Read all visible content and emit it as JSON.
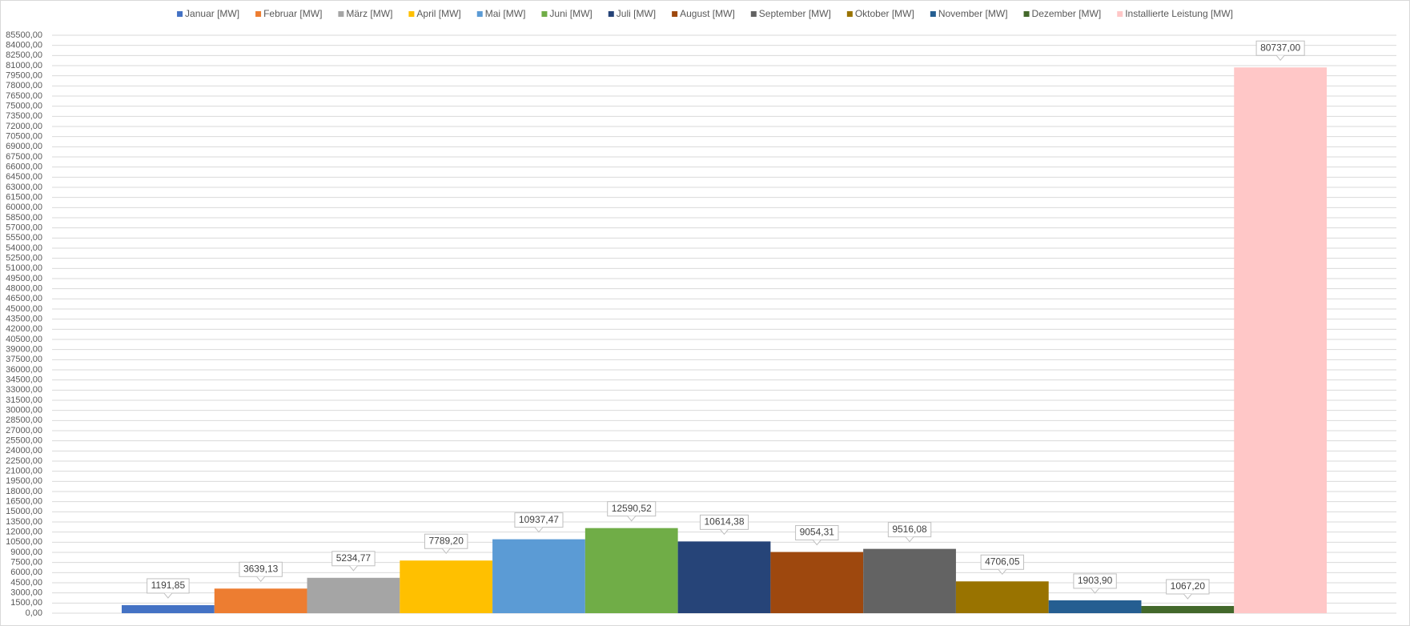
{
  "chart_data": {
    "type": "bar",
    "categories": [
      null
    ],
    "series": [
      {
        "name": "Januar [MW]",
        "color": "#4472c4",
        "values": [
          1191.85
        ],
        "value_labels": [
          "1191,85"
        ]
      },
      {
        "name": "Februar [MW]",
        "color": "#ed7d31",
        "values": [
          3639.13
        ],
        "value_labels": [
          "3639,13"
        ]
      },
      {
        "name": "März [MW]",
        "color": "#a5a5a5",
        "values": [
          5234.77
        ],
        "value_labels": [
          "5234,77"
        ]
      },
      {
        "name": "April [MW]",
        "color": "#ffc000",
        "values": [
          7789.2
        ],
        "value_labels": [
          "7789,20"
        ]
      },
      {
        "name": "Mai [MW]",
        "color": "#5b9bd5",
        "values": [
          10937.47
        ],
        "value_labels": [
          "10937,47"
        ]
      },
      {
        "name": "Juni [MW]",
        "color": "#70ad47",
        "values": [
          12590.52
        ],
        "value_labels": [
          "12590,52"
        ]
      },
      {
        "name": "Juli [MW]",
        "color": "#264478",
        "values": [
          10614.38
        ],
        "value_labels": [
          "10614,38"
        ]
      },
      {
        "name": "August [MW]",
        "color": "#9e480e",
        "values": [
          9054.31
        ],
        "value_labels": [
          "9054,31"
        ]
      },
      {
        "name": "September [MW]",
        "color": "#636363",
        "values": [
          9516.08
        ],
        "value_labels": [
          "9516,08"
        ]
      },
      {
        "name": "Oktober [MW]",
        "color": "#997300",
        "values": [
          4706.05
        ],
        "value_labels": [
          "4706,05"
        ]
      },
      {
        "name": "November [MW]",
        "color": "#255e91",
        "values": [
          1903.9
        ],
        "value_labels": [
          "1903,90"
        ]
      },
      {
        "name": "Dezember [MW]",
        "color": "#43682b",
        "values": [
          1067.2
        ],
        "value_labels": [
          "1067,20"
        ]
      },
      {
        "name": "Installierte Leistung [MW]",
        "color": "#ffc7c7",
        "values": [
          80737.0
        ],
        "value_labels": [
          "80737,00"
        ]
      }
    ],
    "ylim": [
      0,
      85500
    ],
    "yticks": [
      {
        "value": 0,
        "label": "0,00"
      },
      {
        "value": 1500,
        "label": "1500,00"
      },
      {
        "value": 3000,
        "label": "3000,00"
      },
      {
        "value": 4500,
        "label": "4500,00"
      },
      {
        "value": 6000,
        "label": "6000,00"
      },
      {
        "value": 7500,
        "label": "7500,00"
      },
      {
        "value": 9000,
        "label": "9000,00"
      },
      {
        "value": 10500,
        "label": "10500,00"
      },
      {
        "value": 12000,
        "label": "12000,00"
      },
      {
        "value": 13500,
        "label": "13500,00"
      },
      {
        "value": 15000,
        "label": "15000,00"
      },
      {
        "value": 16500,
        "label": "16500,00"
      },
      {
        "value": 18000,
        "label": "18000,00"
      },
      {
        "value": 19500,
        "label": "19500,00"
      },
      {
        "value": 21000,
        "label": "21000,00"
      },
      {
        "value": 22500,
        "label": "22500,00"
      },
      {
        "value": 24000,
        "label": "24000,00"
      },
      {
        "value": 25500,
        "label": "25500,00"
      },
      {
        "value": 27000,
        "label": "27000,00"
      },
      {
        "value": 28500,
        "label": "28500,00"
      },
      {
        "value": 30000,
        "label": "30000,00"
      },
      {
        "value": 31500,
        "label": "31500,00"
      },
      {
        "value": 33000,
        "label": "33000,00"
      },
      {
        "value": 34500,
        "label": "34500,00"
      },
      {
        "value": 36000,
        "label": "36000,00"
      },
      {
        "value": 37500,
        "label": "37500,00"
      },
      {
        "value": 39000,
        "label": "39000,00"
      },
      {
        "value": 40500,
        "label": "40500,00"
      },
      {
        "value": 42000,
        "label": "42000,00"
      },
      {
        "value": 43500,
        "label": "43500,00"
      },
      {
        "value": 45000,
        "label": "45000,00"
      },
      {
        "value": 46500,
        "label": "46500,00"
      },
      {
        "value": 48000,
        "label": "48000,00"
      },
      {
        "value": 49500,
        "label": "49500,00"
      },
      {
        "value": 51000,
        "label": "51000,00"
      },
      {
        "value": 52500,
        "label": "52500,00"
      },
      {
        "value": 54000,
        "label": "54000,00"
      },
      {
        "value": 55500,
        "label": "55500,00"
      },
      {
        "value": 57000,
        "label": "57000,00"
      },
      {
        "value": 58500,
        "label": "58500,00"
      },
      {
        "value": 60000,
        "label": "60000,00"
      },
      {
        "value": 61500,
        "label": "61500,00"
      },
      {
        "value": 63000,
        "label": "63000,00"
      },
      {
        "value": 64500,
        "label": "64500,00"
      },
      {
        "value": 66000,
        "label": "66000,00"
      },
      {
        "value": 67500,
        "label": "67500,00"
      },
      {
        "value": 69000,
        "label": "69000,00"
      },
      {
        "value": 70500,
        "label": "70500,00"
      },
      {
        "value": 72000,
        "label": "72000,00"
      },
      {
        "value": 73500,
        "label": "73500,00"
      },
      {
        "value": 75000,
        "label": "75000,00"
      },
      {
        "value": 76500,
        "label": "76500,00"
      },
      {
        "value": 78000,
        "label": "78000,00"
      },
      {
        "value": 79500,
        "label": "79500,00"
      },
      {
        "value": 81000,
        "label": "81000,00"
      },
      {
        "value": 82500,
        "label": "82500,00"
      },
      {
        "value": 84000,
        "label": "84000,00"
      },
      {
        "value": 85500,
        "label": "85500,00"
      }
    ],
    "grid": true,
    "legend": "top"
  }
}
